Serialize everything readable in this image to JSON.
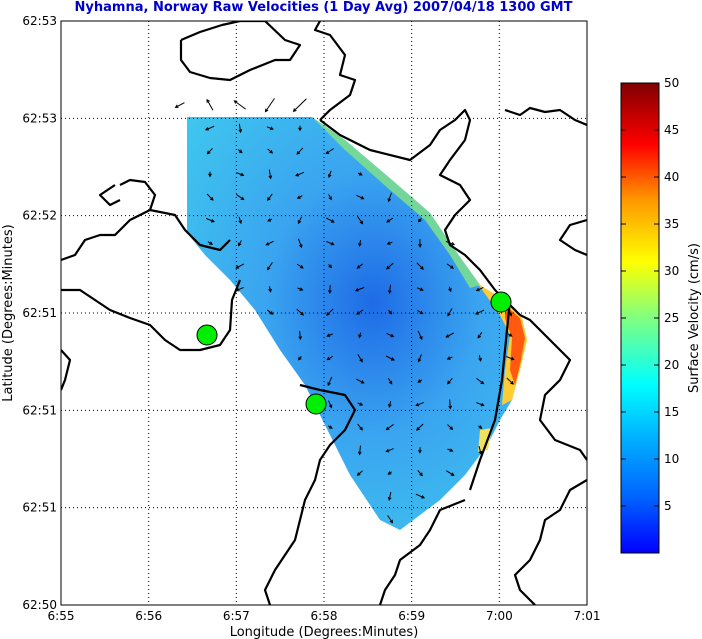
{
  "title": "Nyhamna, Norway Raw Velocities (1 Day Avg) 2007/04/18 1300 GMT",
  "axes": {
    "xlabel": "Longitude (Degrees:Minutes)",
    "ylabel": "Latitude (Degrees:Minutes)",
    "xticks": [
      "6:55",
      "6:56",
      "6:57",
      "6:58",
      "6:59",
      "7:00",
      "7:01"
    ],
    "yticks": [
      "62:53",
      "62:53",
      "62:52",
      "62:51",
      "62:51",
      "62:51",
      "62:50"
    ]
  },
  "colorbar": {
    "label": "Surface Velocity (cm/s)",
    "ticks": [
      "5",
      "10",
      "15",
      "20",
      "25",
      "30",
      "35",
      "40",
      "45",
      "50"
    ],
    "colormap": "jet",
    "range": [
      0,
      50
    ]
  },
  "colors": {
    "title": "#0000cc",
    "coastline": "#000000",
    "station": "#00ee00"
  },
  "markers": [
    {
      "name": "radar-station-west",
      "lon": "6:56.7"
    },
    {
      "name": "radar-station-south",
      "lon": "6:57.9"
    },
    {
      "name": "radar-station-east",
      "lon": "7:00.0"
    }
  ]
}
